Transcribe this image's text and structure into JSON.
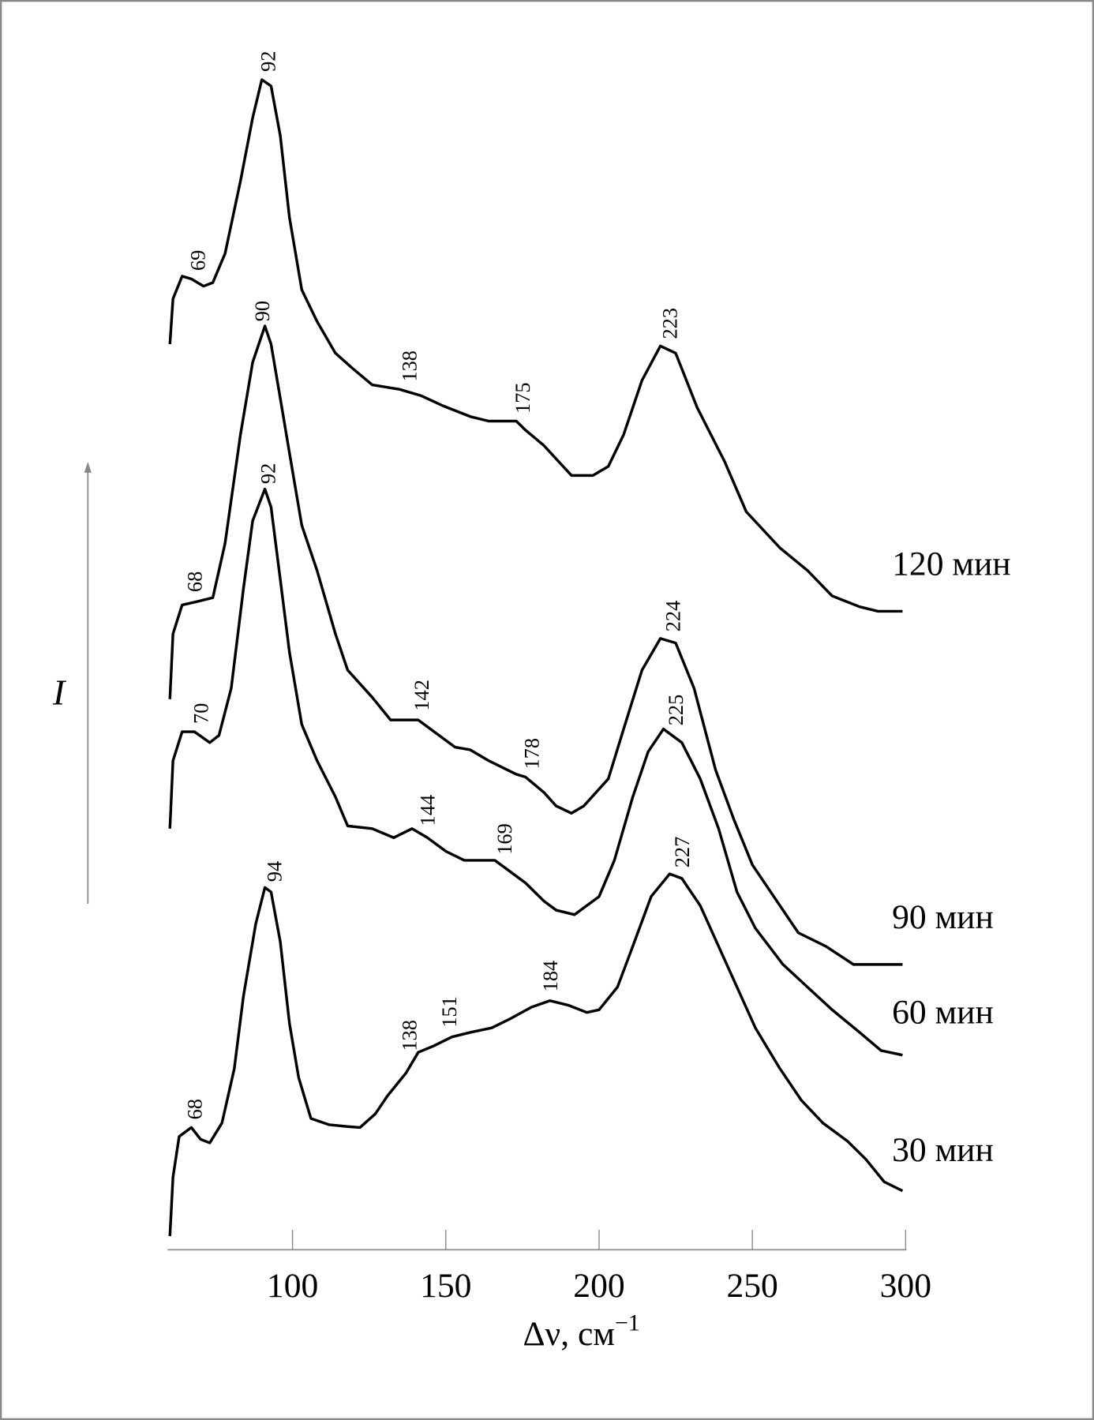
{
  "chart_data": {
    "type": "line",
    "title": "",
    "xlabel": "Δν, см",
    "xlabel_superscript": "−1",
    "ylabel": "I",
    "xlim": [
      60,
      300
    ],
    "xticks": [
      100,
      150,
      200,
      250,
      300
    ],
    "y_units": "arbitrary (curves vertically offset)",
    "grid": false,
    "legend": "series labels at right end of each curve",
    "line_color": "#000000",
    "series": [
      {
        "name": "120 мин",
        "x": [
          60,
          61,
          64,
          67,
          71,
          74,
          78,
          83,
          87,
          90,
          93,
          96,
          99,
          103,
          108,
          114,
          120,
          126,
          135,
          142,
          149,
          158,
          164,
          173,
          176,
          182,
          191,
          198,
          203,
          208,
          214,
          220,
          225,
          232,
          241,
          248,
          259,
          268,
          276,
          285,
          291,
          299
        ],
        "y": [
          100,
          105,
          107.5,
          107.2,
          106.4,
          106.8,
          110,
          118,
          125,
          129.2,
          128.5,
          123,
          114,
          106,
          102.5,
          99,
          97.2,
          95.5,
          95,
          94.3,
          93.2,
          92,
          91.5,
          91.5,
          90.5,
          88.8,
          85.5,
          85.5,
          86.5,
          90,
          96,
          99.8,
          99,
          93,
          87,
          81.5,
          77.5,
          75,
          72.2,
          71,
          70.5,
          70.5
        ],
        "peak_labels": [
          "69",
          "92",
          "138",
          "175",
          "223"
        ]
      },
      {
        "name": "90 мин",
        "x": [
          60,
          61,
          64,
          68,
          74,
          78,
          83,
          87,
          91,
          93,
          96,
          99,
          103,
          108,
          114,
          118,
          126,
          132,
          141,
          147,
          153,
          158,
          164,
          173,
          176,
          182,
          186,
          191,
          195,
          203,
          208,
          214,
          220,
          225,
          231,
          238,
          244,
          250,
          259,
          265,
          274,
          283,
          289,
          299
        ],
        "y": [
          60.8,
          68,
          71.2,
          71.5,
          72,
          78,
          90,
          98,
          102,
          100,
          94,
          88,
          80,
          75,
          68,
          64,
          61,
          58.5,
          58.5,
          57,
          55.5,
          55.2,
          54,
          52.5,
          52.2,
          50.5,
          49,
          48.2,
          49,
          52,
          57.5,
          64,
          67.5,
          67,
          62,
          53,
          47.5,
          42.5,
          38,
          35,
          33.5,
          31.5,
          31.5,
          31.5
        ],
        "peak_labels": [
          "68",
          "90",
          "142",
          "178",
          "224"
        ]
      },
      {
        "name": "60 мин",
        "x": [
          60,
          61,
          64,
          68,
          73,
          76,
          80,
          84,
          87,
          91,
          93,
          96,
          99,
          103,
          108,
          114,
          118,
          126,
          133,
          139,
          144,
          150,
          156,
          166,
          170,
          176,
          182,
          186,
          192,
          200,
          205,
          211,
          216,
          221,
          227,
          233,
          239,
          245,
          251,
          260,
          268,
          276,
          285,
          292,
          299
        ],
        "y": [
          46.5,
          54,
          57.2,
          57.2,
          56,
          56.8,
          62,
          73,
          80.5,
          84,
          82,
          74,
          66,
          58,
          54,
          50,
          46.8,
          46.5,
          45.5,
          46.5,
          45.5,
          44,
          43,
          43,
          42,
          40.5,
          38.5,
          37.5,
          37,
          39,
          43,
          50,
          55,
          57.5,
          56,
          52,
          46.5,
          39.5,
          35.5,
          31.5,
          29,
          26.5,
          24,
          22,
          21.5
        ],
        "peak_labels": [
          "70",
          "92",
          "144",
          "169",
          "225"
        ]
      },
      {
        "name": "30 мин",
        "x": [
          60,
          61,
          63,
          67,
          70,
          73,
          77,
          81,
          84,
          88,
          91,
          93,
          96,
          99,
          102,
          106,
          112,
          118,
          122,
          127,
          131,
          137,
          141,
          146,
          152,
          158,
          165,
          171,
          178,
          184,
          190,
          196,
          200,
          206,
          211,
          217,
          223,
          227,
          233,
          239,
          245,
          251,
          259,
          266,
          273,
          281,
          287,
          293,
          299
        ],
        "y": [
          1.5,
          8,
          12.5,
          13.5,
          12.2,
          11.8,
          14,
          20,
          28,
          36,
          40,
          39.5,
          34,
          25,
          19,
          14.5,
          13.8,
          13.6,
          13.5,
          15,
          17,
          19.5,
          21.8,
          22.5,
          23.5,
          24,
          24.5,
          25.5,
          26.8,
          27.5,
          27,
          26.2,
          26.5,
          29,
          33.5,
          39,
          41.5,
          41,
          38,
          33.5,
          29,
          24.5,
          20,
          16.5,
          14,
          12,
          10,
          7.5,
          6.5
        ],
        "peak_labels": [
          "68",
          "94",
          "138",
          "151",
          "184",
          "227"
        ]
      }
    ]
  }
}
